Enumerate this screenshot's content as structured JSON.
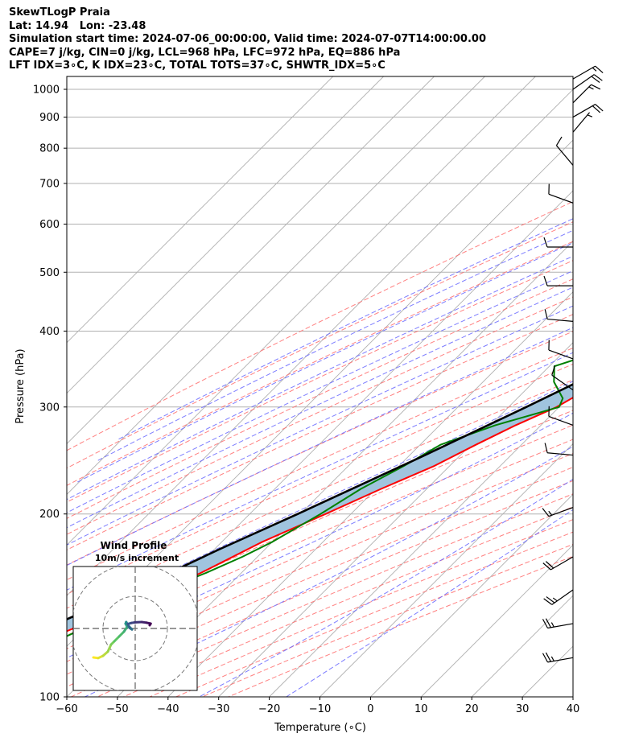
{
  "header": {
    "line1": "SkewTLogP Praia",
    "line2": "Lat: 14.94   Lon: -23.48",
    "line3": "Simulation start time: 2024-07-06_00:00:00, Valid time: 2024-07-07T14:00:00.00",
    "line4": "CAPE=7 j/kg, CIN=0 j/kg, LCL=968 hPa, LFC=972 hPa, EQ=886 hPa",
    "line5": "LFT IDX=3∘C, K IDX=23∘C, TOTAL TOTS=37∘C, SHWTR_IDX=5∘C"
  },
  "chart_data": {
    "type": "line",
    "subtype": "skew-t log-p",
    "xlabel": "Temperature (∘C)",
    "ylabel": "Pressure (hPa)",
    "xlim": [
      -60,
      40
    ],
    "ylim": [
      1050,
      100
    ],
    "y_scale": "log",
    "grid": true,
    "x_ticks": [
      -60,
      -50,
      -40,
      -30,
      -20,
      -10,
      0,
      10,
      20,
      30,
      40
    ],
    "y_ticks": [
      100,
      200,
      300,
      400,
      500,
      600,
      700,
      800,
      900,
      1000
    ],
    "colors": {
      "temperature": "#ff0000",
      "dewpoint": "#008000",
      "parcel": "#000000",
      "cape_fill": "#a0c4de",
      "dry_adiabats": "#ff6b6b",
      "moist_adiabats": "#6666ff",
      "mixing_ratio": "#a050d0",
      "isotherms": "#b0b0b0"
    },
    "series": [
      {
        "key": "temperature",
        "points": [
          [
            1000,
            24
          ],
          [
            990,
            22.5
          ],
          [
            970,
            21.5
          ],
          [
            950,
            21.8
          ],
          [
            900,
            22.2
          ],
          [
            870,
            22.8
          ],
          [
            850,
            24.5
          ],
          [
            820,
            25.8
          ],
          [
            800,
            25.5
          ],
          [
            760,
            24
          ],
          [
            700,
            20
          ],
          [
            600,
            12.5
          ],
          [
            500,
            4
          ],
          [
            450,
            -1
          ],
          [
            400,
            -6.5
          ],
          [
            350,
            -14
          ],
          [
            320,
            -18
          ],
          [
            300,
            -20.5
          ],
          [
            280,
            -25
          ],
          [
            260,
            -29
          ],
          [
            240,
            -33
          ],
          [
            220,
            -39
          ],
          [
            200,
            -45
          ],
          [
            180,
            -52
          ],
          [
            160,
            -58
          ],
          [
            150,
            -62
          ],
          [
            140,
            -66
          ],
          [
            130,
            -72
          ],
          [
            120,
            -78
          ],
          [
            110,
            -83
          ],
          [
            100,
            -88
          ]
        ]
      },
      {
        "key": "dewpoint",
        "points": [
          [
            1000,
            20.5
          ],
          [
            970,
            20
          ],
          [
            950,
            19.5
          ],
          [
            900,
            18.5
          ],
          [
            870,
            17
          ],
          [
            850,
            16.5
          ],
          [
            800,
            16
          ],
          [
            750,
            14
          ],
          [
            700,
            12
          ],
          [
            650,
            9
          ],
          [
            600,
            6
          ],
          [
            550,
            1
          ],
          [
            500,
            -5
          ],
          [
            450,
            -10
          ],
          [
            420,
            -12
          ],
          [
            400,
            -13
          ],
          [
            380,
            -20
          ],
          [
            350,
            -29
          ],
          [
            330,
            -26
          ],
          [
            310,
            -21
          ],
          [
            300,
            -20
          ],
          [
            280,
            -29
          ],
          [
            260,
            -36
          ],
          [
            240,
            -39
          ],
          [
            220,
            -43
          ],
          [
            200,
            -46
          ],
          [
            180,
            -50
          ],
          [
            170,
            -53
          ],
          [
            160,
            -57
          ],
          [
            150,
            -62
          ],
          [
            140,
            -65
          ],
          [
            130,
            -70
          ],
          [
            120,
            -75
          ],
          [
            110,
            -81
          ],
          [
            100,
            -88
          ]
        ]
      },
      {
        "key": "parcel",
        "points": [
          [
            1000,
            23
          ],
          [
            968,
            21.2
          ],
          [
            950,
            20.7
          ],
          [
            900,
            19.2
          ],
          [
            850,
            17.6
          ],
          [
            800,
            16
          ],
          [
            750,
            14.1
          ],
          [
            700,
            12
          ],
          [
            650,
            9.4
          ],
          [
            600,
            6.5
          ],
          [
            550,
            3.1
          ],
          [
            500,
            -0.8
          ],
          [
            450,
            -5.5
          ],
          [
            400,
            -11
          ],
          [
            350,
            -18
          ],
          [
            300,
            -26.5
          ],
          [
            250,
            -37
          ],
          [
            200,
            -50.5
          ],
          [
            175,
            -59
          ],
          [
            150,
            -68
          ],
          [
            125,
            -80
          ],
          [
            100,
            -95
          ]
        ]
      }
    ],
    "wind_barbs": [
      {
        "p": 1040,
        "speed_kt": 15,
        "dir": 60
      },
      {
        "p": 1000,
        "speed_kt": 20,
        "dir": 55
      },
      {
        "p": 950,
        "speed_kt": 15,
        "dir": 45
      },
      {
        "p": 900,
        "speed_kt": 20,
        "dir": 60
      },
      {
        "p": 850,
        "speed_kt": 5,
        "dir": 40
      },
      {
        "p": 750,
        "speed_kt": 10,
        "dir": 320
      },
      {
        "p": 650,
        "speed_kt": 10,
        "dir": 290
      },
      {
        "p": 550,
        "speed_kt": 10,
        "dir": 270
      },
      {
        "p": 475,
        "speed_kt": 10,
        "dir": 270
      },
      {
        "p": 415,
        "speed_kt": 10,
        "dir": 275
      },
      {
        "p": 360,
        "speed_kt": 10,
        "dir": 290
      },
      {
        "p": 320,
        "speed_kt": 10,
        "dir": 305
      },
      {
        "p": 280,
        "speed_kt": 10,
        "dir": 290
      },
      {
        "p": 250,
        "speed_kt": 10,
        "dir": 275
      },
      {
        "p": 205,
        "speed_kt": 15,
        "dir": 250
      },
      {
        "p": 170,
        "speed_kt": 20,
        "dir": 240
      },
      {
        "p": 150,
        "speed_kt": 25,
        "dir": 235
      },
      {
        "p": 132,
        "speed_kt": 25,
        "dir": 260
      },
      {
        "p": 116,
        "speed_kt": 25,
        "dir": 260
      }
    ],
    "hodograph": {
      "title": "Wind Profile",
      "subtitle": "10m/s increment",
      "rings": 3,
      "points": [
        [
          -13,
          -9
        ],
        [
          -11.5,
          -9.2
        ],
        [
          -10,
          -8.5
        ],
        [
          -8.5,
          -7.2
        ],
        [
          -7.5,
          -5
        ],
        [
          -6.5,
          -4
        ],
        [
          -5,
          -2.5
        ],
        [
          -3.5,
          -1
        ],
        [
          -2.5,
          0.5
        ],
        [
          -3,
          1.5
        ],
        [
          -2.8,
          2
        ],
        [
          -2,
          0.7
        ],
        [
          -1,
          -0.3
        ],
        [
          -1.8,
          0.2
        ],
        [
          -2.3,
          1.4
        ],
        [
          -1.2,
          1.7
        ],
        [
          0,
          1.9
        ],
        [
          2,
          2
        ],
        [
          3.5,
          1.8
        ],
        [
          4.8,
          1.5
        ],
        [
          4.5,
          1
        ]
      ]
    }
  }
}
